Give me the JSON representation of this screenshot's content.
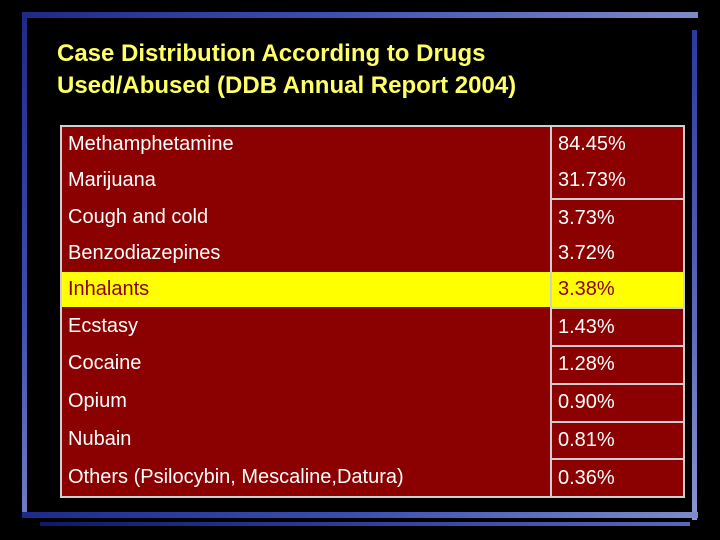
{
  "slide": {
    "title_line1": "Case Distribution According to Drugs",
    "title_line2": "Used/Abused (DDB Annual Report 2004)",
    "colors": {
      "background": "#000000",
      "title": "#ffff66",
      "table_fill": "#8b0000",
      "highlight": "#ffff00",
      "frame": "#3b4fb0"
    }
  },
  "table": {
    "rows": [
      {
        "drug": "Methamphetamine",
        "percent": "84.45%"
      },
      {
        "drug": "Marijuana",
        "percent": "31.73%"
      },
      {
        "drug": "Cough and cold",
        "percent": "3.73%"
      },
      {
        "drug": "Benzodiazepines",
        "percent": "3.72%"
      },
      {
        "drug": "Inhalants",
        "percent": "3.38%"
      },
      {
        "drug": "Ecstasy",
        "percent": "1.43%"
      },
      {
        "drug": "Cocaine",
        "percent": "1.28%"
      },
      {
        "drug": "Opium",
        "percent": "0.90%"
      },
      {
        "drug": "Nubain",
        "percent": "0.81%"
      },
      {
        "drug": "Others (Psilocybin, Mescaline,Datura)",
        "percent": "0.36%"
      }
    ],
    "highlighted_row": "Inhalants"
  }
}
